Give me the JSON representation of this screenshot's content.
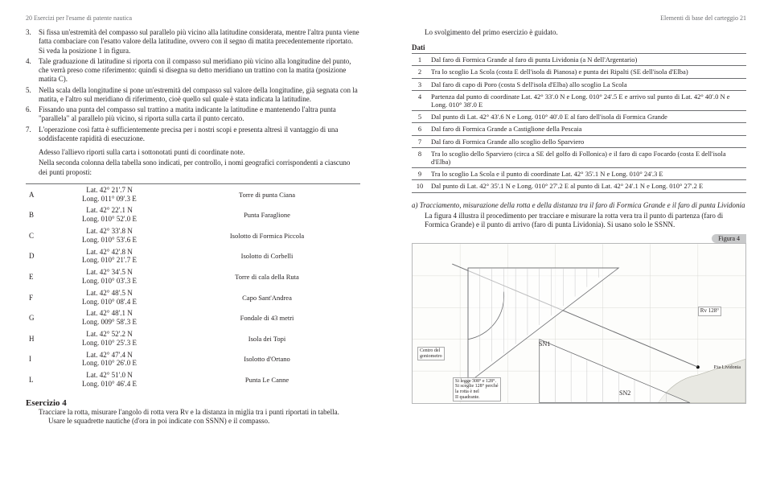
{
  "leftHeader": "20  Esercizi per l'esame di patente nautica",
  "rightHeader": "Elementi di base del carteggio  21",
  "steps": [
    {
      "n": "3.",
      "t": "Si fissa un'estremità del compasso sul parallelo più vicino alla latitudine considerata, mentre l'altra punta viene fatta combaciare con l'esatto valore della latitudine, ovvero con il segno di matita precedentemente riportato. Si veda la posizione 1 in figura."
    },
    {
      "n": "4.",
      "t": "Tale graduazione di latitudine si riporta con il compasso sul meridiano più vicino alla longitudine del punto, che verrà preso come riferimento: quindi si disegna su detto meridiano un trattino con la matita (posizione matita C)."
    },
    {
      "n": "5.",
      "t": "Nella scala della longitudine si pone un'estremità del compasso sul valore della longitudine, già segnata con la matita, e l'altro sul meridiano di riferimento, cioè quello sul quale è stata indicata la latitudine."
    },
    {
      "n": "6.",
      "t": "Fissando una punta del compasso sul trattino a matita indicante la latitudine e mantenendo l'altra punta \"parallela\" al parallelo più vicino, si riporta sulla carta il punto cercato."
    },
    {
      "n": "7.",
      "t": "L'operazione così fatta è sufficientemente precisa per i nostri scopi e presenta altresì il vantaggio di una soddisfacente rapidità di esecuzione."
    }
  ],
  "para1": "Adesso l'allievo riporti sulla carta i sottonotati punti di coordinate note.",
  "para2": "Nella seconda colonna della tabella sono indicati, per controllo, i nomi geografici corrispondenti a ciascuno dei punti proposti:",
  "coords": [
    {
      "l": "A",
      "c1": "Lat. 42° 21'.7 N",
      "c2": "Long. 011° 09'.3 E",
      "name": "Torre di punta Ciana"
    },
    {
      "l": "B",
      "c1": "Lat. 42° 22'.1 N",
      "c2": "Long. 010° 52'.0 E",
      "name": "Punta Faraglione"
    },
    {
      "l": "C",
      "c1": "Lat. 42° 33'.8 N",
      "c2": "Long. 010° 53'.6 E",
      "name": "Isolotto di Formica Piccola"
    },
    {
      "l": "D",
      "c1": "Lat. 42° 42'.8 N",
      "c2": "Long. 010° 21'.7 E",
      "name": "Isolotto di Corbelli"
    },
    {
      "l": "E",
      "c1": "Lat. 42° 34'.5 N",
      "c2": "Long. 010° 03'.3 E",
      "name": "Torre di cala della Ruta"
    },
    {
      "l": "F",
      "c1": "Lat. 42° 48'.5 N",
      "c2": "Long. 010° 08'.4 E",
      "name": "Capo Sant'Andrea"
    },
    {
      "l": "G",
      "c1": "Lat. 42° 48'.1 N",
      "c2": "Long. 009° 58'.3 E",
      "name": "Fondale di 43 metri"
    },
    {
      "l": "H",
      "c1": "Lat. 42° 52'.2 N",
      "c2": "Long. 010° 25'.3 E",
      "name": "Isola dei Topi"
    },
    {
      "l": "I",
      "c1": "Lat. 42° 47'.4 N",
      "c2": "Long. 010° 26'.0 E",
      "name": "Isolotto d'Ortano"
    },
    {
      "l": "L",
      "c1": "Lat. 42° 51'.0 N",
      "c2": "Long. 010° 46'.4 E",
      "name": "Punta Le Canne"
    }
  ],
  "ex4Title": "Esercizio 4",
  "ex4a": "Tracciare la rotta, misurare l'angolo di rotta vera Rv e la distanza in miglia tra i punti riportati in tabella.",
  "ex4b": "Usare le squadrette nautiche (d'ora in poi indicate con SSNN) e il compasso.",
  "intro": "Lo svolgimento del primo esercizio è guidato.",
  "datiTitle": "Dati",
  "dati": [
    {
      "n": "1",
      "t": "Dal faro di Formica Grande al faro di punta Lividonia (a N dell'Argentario)"
    },
    {
      "n": "2",
      "t": "Tra lo scoglio La Scola (costa E dell'isola di Pianosa) e punta dei Ripalti (SE dell'isola d'Elba)"
    },
    {
      "n": "3",
      "t": "Dal faro di capo di Poro (costa S dell'isola d'Elba) allo scoglio La Scola"
    },
    {
      "n": "4",
      "t": "Partenza dal punto di coordinate Lat. 42° 33'.0 N e Long. 010° 24'.5 E e arrivo sul punto di Lat. 42° 40'.0 N e Long. 010° 38'.0 E"
    },
    {
      "n": "5",
      "t": "Dal punto di Lat. 42° 43'.6 N e Long. 010° 40'.0 E al faro dell'isola di Formica Grande"
    },
    {
      "n": "6",
      "t": "Dal faro di Formica Grande a Castiglione della Pescaia"
    },
    {
      "n": "7",
      "t": "Dal faro di Formica Grande allo scoglio dello Sparviero"
    },
    {
      "n": "8",
      "t": "Tra lo scoglio dello Sparviero (circa a SE del golfo di Follonica) e il faro di capo Focardo (costa E dell'isola d'Elba)"
    },
    {
      "n": "9",
      "t": "Tra lo scoglio La Scola e il punto di coordinate Lat. 42° 35'.1 N e Long. 010° 24'.3 E"
    },
    {
      "n": "10",
      "t": "Dal punto di Lat. 42° 35'.1 N e Long. 010° 27'.2 E al punto di Lat. 42° 24'.1 N e Long. 010° 27'.2 E"
    }
  ],
  "secTitle": "a) Tracciamento, misurazione della rotta e della distanza tra il faro di Formica Grande e il faro di punta Lividonia",
  "secBody": "La figura 4 illustra il procedimento per tracciare e misurare la rotta vera tra il punto di partenza (faro di Formica Grande) e il punto di arrivo (faro di punta Lividonia). Si usano solo le SSNN.",
  "figuraLabel": "Figura 4",
  "annot1": "Centro del\ngoniometro",
  "annot2": "Si legge 308° e 128°.\nSi sceglie 128° perché\nla rotta è nel\nII quadrante.",
  "sn1": "SN1",
  "sn2": "SN2",
  "rv": "Rv 128°",
  "ptaLiv": "P.ta Lividonia"
}
